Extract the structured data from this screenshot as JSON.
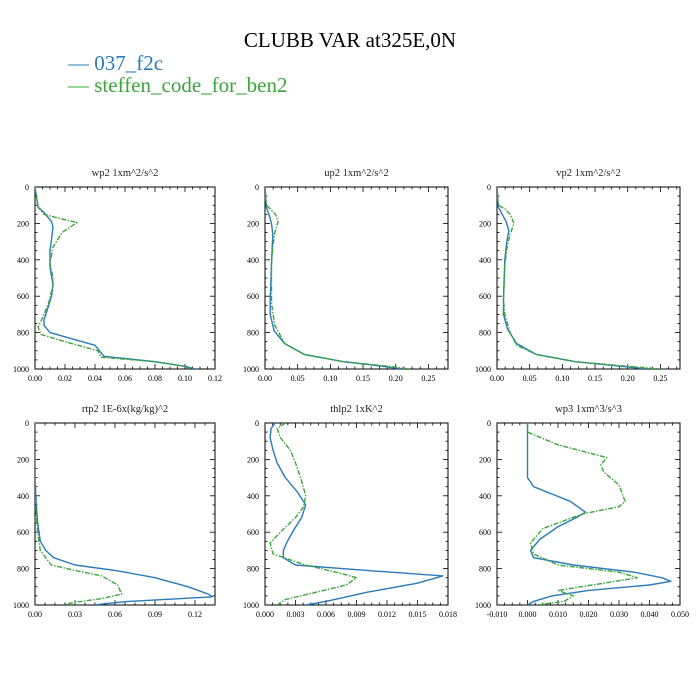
{
  "title": "CLUBB VAR at325E,0N",
  "legend": [
    {
      "name": "037_f2c",
      "color": "#2b7bb9"
    },
    {
      "name": "steffen_code_for_ben2",
      "color": "#3aa63a"
    }
  ],
  "chart_data": [
    {
      "type": "line",
      "title": "wp2   1xm^2/s^2",
      "xlim": [
        0,
        0.12
      ],
      "xticks": [
        "0.00",
        "0.02",
        "0.04",
        "0.06",
        "0.08",
        "0.10",
        "0.12"
      ],
      "ylim": [
        1000,
        0
      ],
      "yticks": [
        "0",
        "200",
        "400",
        "600",
        "800",
        "1000"
      ],
      "series": [
        {
          "name": "037_f2c",
          "style": "solid",
          "color": "#2b7bb9",
          "x": [
            0.0,
            0.002,
            0.006,
            0.011,
            0.012,
            0.011,
            0.01,
            0.01,
            0.011,
            0.012,
            0.011,
            0.008,
            0.006,
            0.006,
            0.01,
            0.04,
            0.046,
            0.08,
            0.1,
            0.107
          ],
          "y": [
            0,
            110,
            140,
            190,
            220,
            290,
            350,
            440,
            490,
            540,
            600,
            680,
            730,
            760,
            800,
            870,
            930,
            960,
            985,
            1000
          ]
        },
        {
          "name": "steffen_code_for_ben2",
          "style": "dashed",
          "color": "#3aa63a",
          "x": [
            0.0,
            0.002,
            0.006,
            0.015,
            0.028,
            0.018,
            0.012,
            0.01,
            0.012,
            0.012,
            0.009,
            0.005,
            0.002,
            0.004,
            0.02,
            0.042,
            0.044,
            0.08,
            0.1,
            0.103
          ],
          "y": [
            0,
            110,
            150,
            170,
            195,
            250,
            330,
            420,
            500,
            540,
            640,
            720,
            770,
            810,
            850,
            900,
            935,
            960,
            985,
            1000
          ]
        }
      ]
    },
    {
      "type": "line",
      "title": "up2   1xm^2/s^2",
      "xlim": [
        0,
        0.28
      ],
      "xticks": [
        "0.00",
        "0.05",
        "0.10",
        "0.15",
        "0.20",
        "0.25"
      ],
      "ylim": [
        1000,
        0
      ],
      "yticks": [
        "0",
        "200",
        "400",
        "600",
        "800",
        "1000"
      ],
      "series": [
        {
          "name": "037_f2c",
          "style": "solid",
          "color": "#2b7bb9",
          "x": [
            0.0,
            0.002,
            0.006,
            0.01,
            0.012,
            0.011,
            0.01,
            0.009,
            0.008,
            0.008,
            0.014,
            0.03,
            0.06,
            0.12,
            0.18,
            0.21
          ],
          "y": [
            0,
            110,
            150,
            200,
            260,
            330,
            420,
            520,
            620,
            700,
            790,
            860,
            920,
            960,
            985,
            1000
          ]
        },
        {
          "name": "steffen_code_for_ben2",
          "style": "dashed",
          "color": "#3aa63a",
          "x": [
            0.0,
            0.002,
            0.008,
            0.016,
            0.02,
            0.015,
            0.012,
            0.01,
            0.01,
            0.01,
            0.015,
            0.03,
            0.06,
            0.12,
            0.19,
            0.22
          ],
          "y": [
            0,
            100,
            120,
            150,
            190,
            250,
            330,
            420,
            520,
            640,
            760,
            860,
            920,
            960,
            985,
            1000
          ]
        }
      ]
    },
    {
      "type": "line",
      "title": "vp2   1xm^2/s^2",
      "xlim": [
        0,
        0.28
      ],
      "xticks": [
        "0.00",
        "0.05",
        "0.10",
        "0.15",
        "0.20",
        "0.25"
      ],
      "ylim": [
        1000,
        0
      ],
      "yticks": [
        "0",
        "200",
        "400",
        "600",
        "800",
        "1000"
      ],
      "series": [
        {
          "name": "037_f2c",
          "style": "solid",
          "color": "#2b7bb9",
          "x": [
            0.0,
            0.002,
            0.008,
            0.014,
            0.018,
            0.015,
            0.012,
            0.011,
            0.01,
            0.01,
            0.016,
            0.03,
            0.06,
            0.12,
            0.19,
            0.23
          ],
          "y": [
            0,
            110,
            150,
            190,
            240,
            300,
            400,
            500,
            600,
            700,
            780,
            860,
            920,
            960,
            985,
            1000
          ]
        },
        {
          "name": "steffen_code_for_ben2",
          "style": "dashed",
          "color": "#3aa63a",
          "x": [
            0.0,
            0.002,
            0.012,
            0.02,
            0.026,
            0.02,
            0.015,
            0.012,
            0.011,
            0.01,
            0.012,
            0.02,
            0.03,
            0.06,
            0.12,
            0.2,
            0.25
          ],
          "y": [
            0,
            100,
            120,
            150,
            200,
            260,
            340,
            430,
            530,
            620,
            700,
            800,
            870,
            920,
            960,
            985,
            1000
          ]
        }
      ]
    },
    {
      "type": "line",
      "title": "rtp2   1E-6x(kg/kg)^2",
      "xlim": [
        0,
        0.135
      ],
      "xticks": [
        "0.00",
        "0.03",
        "0.06",
        "0.09",
        "0.12"
      ],
      "ylim": [
        1000,
        0
      ],
      "yticks": [
        "0",
        "200",
        "400",
        "600",
        "800",
        "1000"
      ],
      "series": [
        {
          "name": "037_f2c",
          "style": "solid",
          "color": "#2b7bb9",
          "x": [
            0.0,
            0.0,
            0.001,
            0.002,
            0.004,
            0.008,
            0.014,
            0.03,
            0.06,
            0.09,
            0.115,
            0.13,
            0.133,
            0.11,
            0.07,
            0.05,
            0.045
          ],
          "y": [
            0,
            300,
            450,
            550,
            650,
            700,
            740,
            780,
            810,
            850,
            900,
            940,
            955,
            965,
            980,
            995,
            1000
          ]
        },
        {
          "name": "steffen_code_for_ben2",
          "style": "dashed",
          "color": "#3aa63a",
          "x": [
            0.0,
            0.0,
            0.001,
            0.002,
            0.004,
            0.012,
            0.03,
            0.05,
            0.062,
            0.065,
            0.05,
            0.03,
            0.02
          ],
          "y": [
            0,
            400,
            500,
            600,
            700,
            780,
            810,
            840,
            890,
            940,
            965,
            985,
            1000
          ]
        }
      ]
    },
    {
      "type": "line",
      "title": "thlp2   1xK^2",
      "xlim": [
        0,
        0.018
      ],
      "xticks": [
        "0.000",
        "0.003",
        "0.006",
        "0.009",
        "0.012",
        "0.015",
        "0.018"
      ],
      "ylim": [
        1000,
        0
      ],
      "yticks": [
        "0",
        "200",
        "400",
        "600",
        "800",
        "1000"
      ],
      "series": [
        {
          "name": "037_f2c",
          "style": "solid",
          "color": "#2b7bb9",
          "x": [
            0.001,
            0.0006,
            0.0005,
            0.0008,
            0.0012,
            0.002,
            0.0032,
            0.004,
            0.0036,
            0.0028,
            0.0022,
            0.0018,
            0.0018,
            0.003,
            0.01,
            0.015,
            0.0175,
            0.015,
            0.01,
            0.006,
            0.004
          ],
          "y": [
            0,
            30,
            80,
            150,
            220,
            300,
            380,
            450,
            520,
            590,
            650,
            700,
            740,
            780,
            810,
            830,
            840,
            880,
            930,
            980,
            1000
          ]
        },
        {
          "name": "steffen_code_for_ben2",
          "style": "dashed",
          "color": "#3aa63a",
          "x": [
            0.002,
            0.0012,
            0.0015,
            0.0025,
            0.003,
            0.0035,
            0.004,
            0.0038,
            0.003,
            0.0015,
            0.0005,
            0.0008,
            0.004,
            0.007,
            0.009,
            0.008,
            0.005,
            0.002,
            0.0012
          ],
          "y": [
            0,
            30,
            80,
            150,
            220,
            300,
            400,
            460,
            520,
            600,
            660,
            720,
            780,
            820,
            850,
            890,
            930,
            970,
            1000
          ]
        }
      ]
    },
    {
      "type": "line",
      "title": "wp3   1xm^3/s^3",
      "xlim": [
        -0.01,
        0.05
      ],
      "xticks": [
        "-0.010",
        "0.000",
        "0.010",
        "0.020",
        "0.030",
        "0.040",
        "0.050"
      ],
      "ylim": [
        1000,
        0
      ],
      "yticks": [
        "0",
        "200",
        "400",
        "600",
        "800",
        "1000"
      ],
      "series": [
        {
          "name": "037_f2c",
          "style": "solid",
          "color": "#2b7bb9",
          "x": [
            0.0,
            0.0,
            0.0,
            0.0,
            0.002,
            0.008,
            0.014,
            0.019,
            0.016,
            0.01,
            0.004,
            0.001,
            0.002,
            0.015,
            0.035,
            0.044,
            0.047,
            0.04,
            0.02,
            0.008,
            0.002,
            0.0
          ],
          "y": [
            0,
            100,
            200,
            300,
            350,
            390,
            430,
            490,
            520,
            570,
            640,
            700,
            740,
            780,
            820,
            850,
            870,
            890,
            920,
            950,
            980,
            1000
          ]
        },
        {
          "name": "steffen_code_for_ben2",
          "style": "dashed",
          "color": "#3aa63a",
          "x": [
            0.0,
            0.0,
            0.01,
            0.026,
            0.024,
            0.025,
            0.03,
            0.032,
            0.03,
            0.018,
            0.005,
            0.001,
            0.002,
            0.01,
            0.03,
            0.036,
            0.025,
            0.01,
            0.015,
            0.012,
            0.003
          ],
          "y": [
            0,
            50,
            120,
            190,
            230,
            270,
            340,
            430,
            460,
            500,
            580,
            660,
            720,
            780,
            820,
            850,
            880,
            920,
            950,
            980,
            1000
          ]
        }
      ]
    }
  ]
}
